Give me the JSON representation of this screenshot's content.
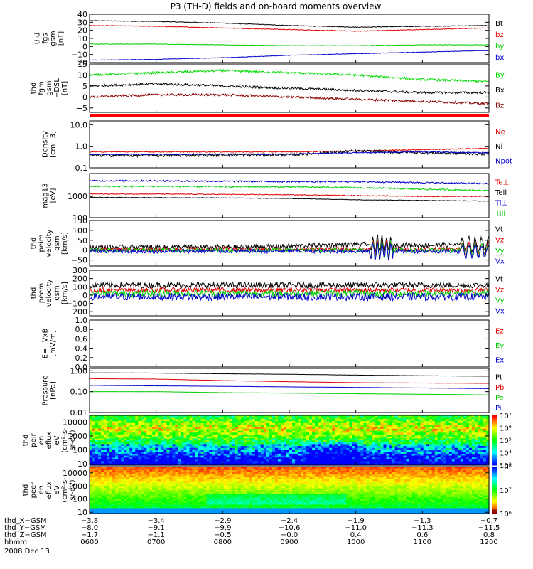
{
  "chart_data": {
    "type": "line",
    "title": "P3 (TH-D) fields and on-board moments overview",
    "date": "2008 Dec 13",
    "panels": [
      {
        "id": "fgs",
        "ylabel": [
          "thd",
          "fgs",
          "gsm",
          "[nT]"
        ],
        "ylim": [
          -20,
          40
        ],
        "yscale": "linear",
        "yticks": [
          {
            "v": 40,
            "t": "40"
          },
          {
            "v": 30,
            "t": "30"
          },
          {
            "v": 20,
            "t": "20"
          },
          {
            "v": 10,
            "t": "10"
          },
          {
            "v": 0,
            "t": "0"
          },
          {
            "v": -10,
            "t": "−10"
          },
          {
            "v": -20,
            "t": "−20"
          }
        ],
        "series": [
          {
            "name": "Bt",
            "color": "#000000",
            "base": [
              32,
              31,
              29,
              26,
              24,
              25,
              26
            ],
            "noise": 0.4
          },
          {
            "name": "bz",
            "color": "#e00000",
            "base": [
              26,
              25,
              23,
              21,
              19,
              21,
              23
            ],
            "noise": 0.4
          },
          {
            "name": "by",
            "color": "#00cc00",
            "base": [
              3,
              3,
              2,
              1,
              1,
              2,
              2
            ],
            "noise": 0.3
          },
          {
            "name": "bx",
            "color": "#0000cc",
            "base": [
              -17,
              -16,
              -14,
              -11,
              -9,
              -7,
              -5
            ],
            "noise": 0.3
          }
        ]
      },
      {
        "id": "fgm",
        "ylabel": [
          "thd",
          "fgm",
          "gsm",
          "−DSL",
          "[nT]"
        ],
        "ylim": [
          -7,
          15
        ],
        "yscale": "linear",
        "yticks": [
          {
            "v": 15,
            "t": "15"
          },
          {
            "v": 10,
            "t": "10"
          },
          {
            "v": 5,
            "t": "5"
          },
          {
            "v": 0,
            "t": "0"
          },
          {
            "v": -5,
            "t": "−5"
          }
        ],
        "series": [
          {
            "name": "By",
            "color": "#00dd00",
            "base": [
              10,
              11,
              12,
              11,
              10,
              8,
              7
            ],
            "noise": 0.5
          },
          {
            "name": "Bx",
            "color": "#000000",
            "base": [
              5,
              6,
              5,
              4,
              3,
              2,
              2
            ],
            "noise": 0.5
          },
          {
            "name": "Bz",
            "color": "#8b0000",
            "base": [
              0,
              1,
              1,
              0,
              -1,
              -2,
              -3
            ],
            "noise": 0.5
          }
        ]
      },
      {
        "id": "density",
        "ylabel": [
          "Density",
          "[cm−3]"
        ],
        "ylim": [
          0.1,
          15
        ],
        "yscale": "log",
        "yticks": [
          {
            "v": 10,
            "t": "10.0"
          },
          {
            "v": 1,
            "t": "1.0"
          },
          {
            "v": 0.1,
            "t": "0.1"
          }
        ],
        "series": [
          {
            "name": "Ne",
            "color": "#e00000",
            "base": [
              0.55,
              0.55,
              0.55,
              0.55,
              0.6,
              0.7,
              0.8
            ],
            "noise": 0.05
          },
          {
            "name": "Ni",
            "color": "#000000",
            "base": [
              0.38,
              0.38,
              0.4,
              0.4,
              0.6,
              0.5,
              0.45
            ],
            "noise": 0.15
          },
          {
            "name": "Npot",
            "color": "#0000cc",
            "base": [
              0.42,
              0.42,
              0.43,
              0.43,
              0.5,
              0.55,
              0.5
            ],
            "noise": 0.05
          }
        ]
      },
      {
        "id": "temp",
        "ylabel": [
          "mag13",
          "[eV]"
        ],
        "ylim": [
          100,
          12000
        ],
        "yscale": "log",
        "yticks": [
          {
            "v": 1000,
            "t": "1000"
          },
          {
            "v": 100,
            "t": "100"
          }
        ],
        "series": [
          {
            "name": "Te⊥",
            "color": "#e00000",
            "base": [
              1300,
              1300,
              1250,
              1200,
              1100,
              1000,
              1000
            ],
            "noise": 0.04
          },
          {
            "name": "Tell",
            "color": "#000000",
            "base": [
              900,
              880,
              850,
              800,
              700,
              650,
              600
            ],
            "noise": 0.03
          },
          {
            "name": "Ti⊥",
            "color": "#0000cc",
            "base": [
              5500,
              5500,
              5200,
              5000,
              5000,
              4500,
              4000
            ],
            "noise": 0.08
          },
          {
            "name": "Till",
            "color": "#00cc00",
            "base": [
              3000,
              3000,
              2900,
              2800,
              2600,
              2200,
              1900
            ],
            "noise": 0.08
          }
        ]
      },
      {
        "id": "peim",
        "ylabel": [
          "thd",
          "peim",
          "velocity",
          "gsm",
          "[km/s]"
        ],
        "ylim": [
          -80,
          150
        ],
        "yscale": "linear",
        "yticks": [
          {
            "v": 150,
            "t": "150"
          },
          {
            "v": 100,
            "t": "100"
          },
          {
            "v": 50,
            "t": "50"
          },
          {
            "v": 0,
            "t": "0"
          },
          {
            "v": -50,
            "t": "−50"
          }
        ],
        "series": [
          {
            "name": "Vt",
            "color": "#000000",
            "base": [
              15,
              15,
              15,
              20,
              30,
              25,
              30
            ],
            "noise": 12
          },
          {
            "name": "Vz",
            "color": "#e00000",
            "base": [
              5,
              5,
              5,
              5,
              5,
              5,
              5
            ],
            "noise": 10
          },
          {
            "name": "Vy",
            "color": "#00cc00",
            "base": [
              0,
              0,
              0,
              0,
              0,
              0,
              0
            ],
            "noise": 10
          },
          {
            "name": "Vx",
            "color": "#0000cc",
            "base": [
              -5,
              -5,
              -5,
              -5,
              -5,
              -5,
              -5
            ],
            "noise": 10
          }
        ]
      },
      {
        "id": "peem",
        "ylabel": [
          "thd",
          "peem",
          "velocity",
          "gsm",
          "[km/s]"
        ],
        "ylim": [
          -250,
          300
        ],
        "yscale": "linear",
        "yticks": [
          {
            "v": 300,
            "t": "300"
          },
          {
            "v": 200,
            "t": "200"
          },
          {
            "v": 100,
            "t": "100"
          },
          {
            "v": 0,
            "t": "0"
          },
          {
            "v": -100,
            "t": "−100"
          },
          {
            "v": -200,
            "t": "−200"
          }
        ],
        "series": [
          {
            "name": "Vt",
            "color": "#000000",
            "base": [
              120,
              120,
              120,
              120,
              120,
              120,
              120
            ],
            "noise": 35
          },
          {
            "name": "Vz",
            "color": "#e00000",
            "base": [
              60,
              60,
              60,
              60,
              60,
              60,
              60
            ],
            "noise": 30
          },
          {
            "name": "Vy",
            "color": "#00cc00",
            "base": [
              20,
              20,
              20,
              20,
              20,
              20,
              20
            ],
            "noise": 40
          },
          {
            "name": "Vx",
            "color": "#0000cc",
            "base": [
              -20,
              -20,
              -20,
              -20,
              -20,
              -20,
              -20
            ],
            "noise": 45
          }
        ]
      },
      {
        "id": "efield",
        "ylabel": [
          "E=−VxB",
          "[mV/m]"
        ],
        "ylim": [
          0,
          1
        ],
        "yscale": "linear",
        "yticks": [
          {
            "v": 1.0,
            "t": "1.0"
          },
          {
            "v": 0.8,
            "t": "0.8"
          },
          {
            "v": 0.6,
            "t": "0.6"
          },
          {
            "v": 0.4,
            "t": "0.4"
          },
          {
            "v": 0.2,
            "t": "0.2"
          },
          {
            "v": 0.0,
            "t": "0.0"
          }
        ],
        "series": [
          {
            "name": "Ez",
            "color": "#e00000",
            "base": [],
            "noise": 0
          },
          {
            "name": "Ey",
            "color": "#00cc00",
            "base": [],
            "noise": 0
          },
          {
            "name": "Ex",
            "color": "#0000cc",
            "base": [],
            "noise": 0
          }
        ]
      },
      {
        "id": "pressure",
        "ylabel": [
          "Pressure",
          "[nPa]"
        ],
        "ylim": [
          0.01,
          1.3
        ],
        "yscale": "log",
        "yticks": [
          {
            "v": 1,
            "t": "1.00"
          },
          {
            "v": 0.1,
            "t": "0.10"
          },
          {
            "v": 0.01,
            "t": "0.01"
          }
        ],
        "series": [
          {
            "name": "Pt",
            "color": "#000000",
            "base": [
              0.8,
              0.78,
              0.72,
              0.68,
              0.62,
              0.58,
              0.55
            ],
            "noise": 0.01
          },
          {
            "name": "Pb",
            "color": "#e00000",
            "base": [
              0.42,
              0.4,
              0.34,
              0.3,
              0.27,
              0.26,
              0.25
            ],
            "noise": 0.01
          },
          {
            "name": "Pe",
            "color": "#00cc00",
            "base": [
              0.1,
              0.1,
              0.09,
              0.085,
              0.08,
              0.075,
              0.07
            ],
            "noise": 0.01
          },
          {
            "name": "Pi",
            "color": "#0000cc",
            "base": [
              0.2,
              0.19,
              0.18,
              0.17,
              0.16,
              0.15,
              0.14
            ],
            "noise": 0.01
          }
        ]
      },
      {
        "id": "peir",
        "type": "heatmap",
        "ylabel": [
          "thd",
          "peir",
          "en",
          "eflux",
          "eV",
          "(cm²-s-",
          "sr-eV)"
        ],
        "ylim": [
          8,
          30000
        ],
        "yscale": "log",
        "yticks": [
          {
            "v": 10000,
            "t": "10000"
          },
          {
            "v": 1000,
            "t": "1000"
          },
          {
            "v": 100,
            "t": "100"
          },
          {
            "v": 10,
            "t": "10"
          }
        ],
        "colorbar": [
          {
            "v": 7,
            "t": "10⁷"
          },
          {
            "v": 6,
            "t": "10⁶"
          },
          {
            "v": 5,
            "t": "10⁵"
          },
          {
            "v": 4,
            "t": "10⁴"
          },
          {
            "v": 3,
            "t": "10³"
          }
        ]
      },
      {
        "id": "peer",
        "type": "heatmap",
        "ylabel": [
          "thd",
          "peer",
          "en",
          "eflux",
          "eV",
          "(cm²-s-",
          "sr-eV)"
        ],
        "ylim": [
          8,
          30000
        ],
        "yscale": "log",
        "yticks": [
          {
            "v": 10000,
            "t": "10000"
          },
          {
            "v": 1000,
            "t": "1000"
          },
          {
            "v": 100,
            "t": "100"
          },
          {
            "v": 10,
            "t": "10"
          }
        ],
        "colorbar": [
          {
            "v": 8,
            "t": "10⁸"
          },
          {
            "v": 7,
            "t": "10⁷"
          },
          {
            "v": 6,
            "t": "10⁶"
          }
        ]
      }
    ],
    "x": {
      "label_rows": [
        "thd_X−GSM",
        "thd_Y−GSM",
        "thd_Z−GSM",
        "hhmm"
      ],
      "ticks": [
        {
          "hhmm": "0600",
          "X": "−3.8",
          "Y": "−8.0",
          "Z": "−1.7"
        },
        {
          "hhmm": "0700",
          "X": "−3.4",
          "Y": "−9.1",
          "Z": "−1.1"
        },
        {
          "hhmm": "0800",
          "X": "−2.9",
          "Y": "−9.9",
          "Z": "−0.5"
        },
        {
          "hhmm": "0900",
          "X": "−2.4",
          "Y": "−10.6",
          "Z": "−0.0"
        },
        {
          "hhmm": "1000",
          "X": "−1.9",
          "Y": "−11.0",
          "Z": "0.4"
        },
        {
          "hhmm": "1100",
          "X": "−1.3",
          "Y": "−11.3",
          "Z": "0.6"
        },
        {
          "hhmm": "1200",
          "X": "−0.7",
          "Y": "−11.5",
          "Z": "0.8"
        }
      ]
    }
  }
}
